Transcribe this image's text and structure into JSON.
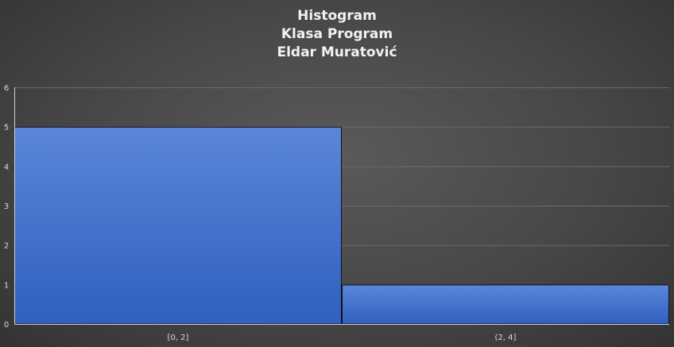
{
  "chart_data": {
    "type": "bar",
    "title": [
      "Histogram",
      "Klasa Program",
      "Eldar Muratović"
    ],
    "categories": [
      "[0, 2]",
      "(2, 4]"
    ],
    "values": [
      5,
      1
    ],
    "ylim": [
      0,
      6
    ],
    "yticks": [
      0,
      1,
      2,
      3,
      4,
      5,
      6
    ],
    "xlabel": "",
    "ylabel": "",
    "grid": true,
    "legend": "none",
    "bar_color": "#3a6cc9",
    "bar_color_light": "#5b86d8",
    "background": "#4a4a4a"
  }
}
